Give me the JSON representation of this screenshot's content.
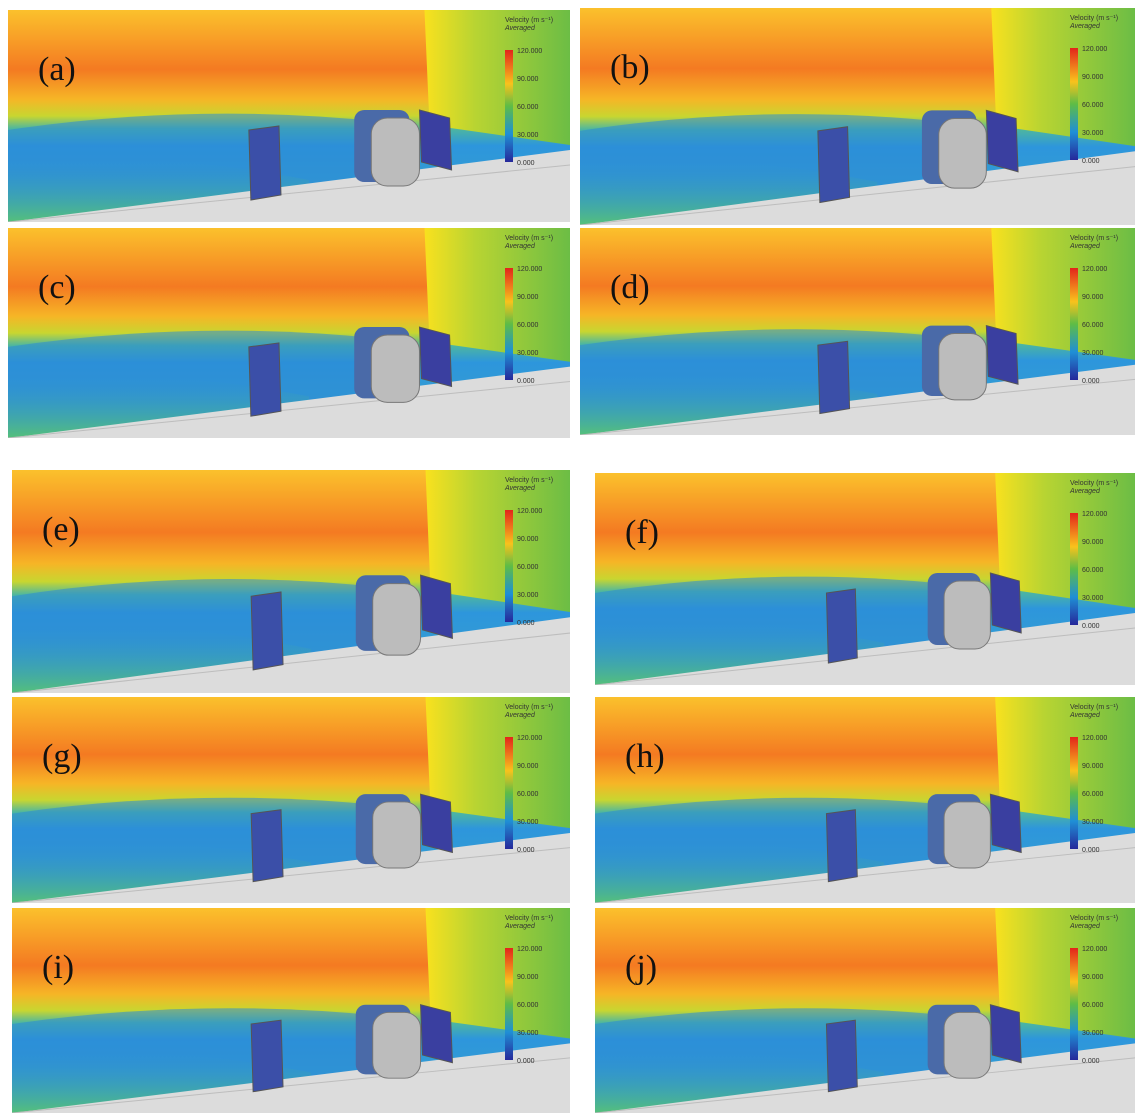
{
  "panels": [
    {
      "label": "(a)"
    },
    {
      "label": "(b)"
    },
    {
      "label": "(c)"
    },
    {
      "label": "(d)"
    },
    {
      "label": "(e)"
    },
    {
      "label": "(f)"
    },
    {
      "label": "(g)"
    },
    {
      "label": "(h)"
    },
    {
      "label": "(i)"
    },
    {
      "label": "(j)"
    }
  ],
  "legend": {
    "title": "Velocity (m s⁻¹)",
    "subtitle": "Averaged",
    "ticks": [
      "120.000",
      "90.000",
      "60.000",
      "30.000",
      "0.000"
    ]
  }
}
